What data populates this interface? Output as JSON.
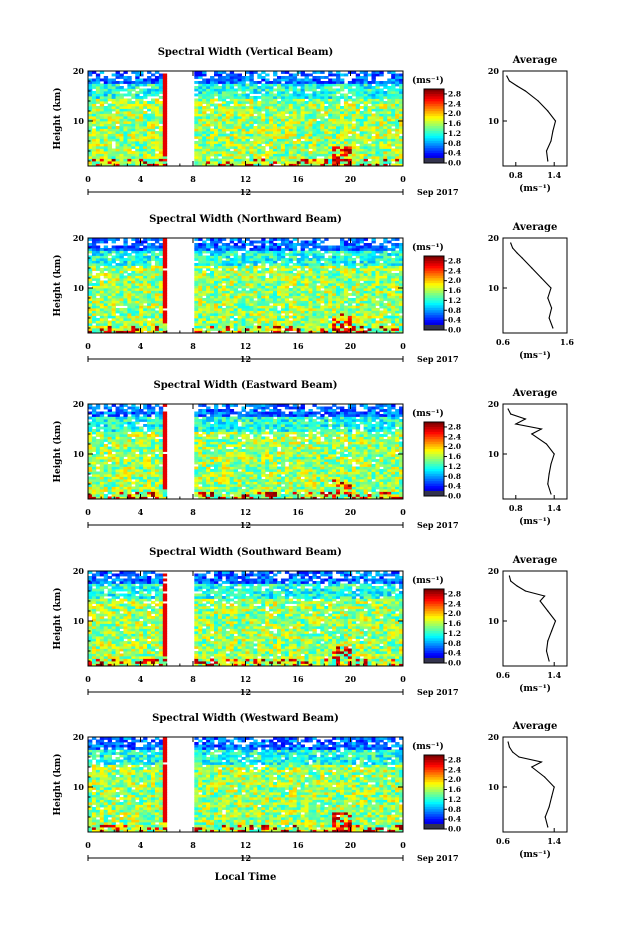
{
  "figure": {
    "xaxis_label": "Local Time",
    "date_label": "Sep 2017",
    "day_label": "12",
    "colorbar_unit": "(ms⁻¹)",
    "avg_title": "Average",
    "avg_unit": "(ms⁻¹)"
  },
  "chart_data": [
    {
      "type": "heatmap",
      "title": "Spectral Width (Vertical Beam)",
      "xlabel": "Local Time",
      "ylabel": "Height (km)",
      "xlim": [
        0,
        24
      ],
      "ylim": [
        1,
        20
      ],
      "xticks": [
        "0",
        "4",
        "8",
        "12",
        "16",
        "20",
        "0"
      ],
      "yticks": [
        "10",
        "20"
      ],
      "data_gap_hours": [
        6,
        8
      ],
      "colorbar": {
        "range": [
          0,
          3.0
        ],
        "ticks": [
          "2.8",
          "2.4",
          "2.0",
          "1.6",
          "1.2",
          "0.8",
          "0.4",
          "0.0"
        ]
      },
      "average_profile": {
        "xticks": [
          "0.8",
          "1.4"
        ],
        "xlim": [
          0.6,
          1.6
        ],
        "height_km": [
          2,
          4,
          6,
          8,
          10,
          12,
          14,
          16,
          17,
          18,
          19
        ],
        "width": [
          1.3,
          1.28,
          1.35,
          1.38,
          1.42,
          1.3,
          1.15,
          0.95,
          0.82,
          0.7,
          0.66
        ]
      }
    },
    {
      "type": "heatmap",
      "title": "Spectral Width (Northward Beam)",
      "xlabel": "Local Time",
      "ylabel": "Height (km)",
      "xlim": [
        0,
        24
      ],
      "ylim": [
        1,
        20
      ],
      "xticks": [
        "0",
        "4",
        "8",
        "12",
        "16",
        "20",
        "0"
      ],
      "yticks": [
        "10",
        "20"
      ],
      "data_gap_hours": [
        6,
        8
      ],
      "colorbar": {
        "range": [
          0,
          3.0
        ],
        "ticks": [
          "2.8",
          "2.4",
          "2.0",
          "1.6",
          "1.2",
          "0.8",
          "0.4",
          "0.0"
        ]
      },
      "average_profile": {
        "xticks": [
          "0.6",
          "1.6"
        ],
        "xlim": [
          0.6,
          1.6
        ],
        "height_km": [
          2,
          4,
          6,
          8,
          10,
          12,
          14,
          16,
          17,
          18,
          19
        ],
        "width": [
          1.38,
          1.32,
          1.36,
          1.3,
          1.35,
          1.2,
          1.05,
          0.9,
          0.82,
          0.75,
          0.72
        ]
      }
    },
    {
      "type": "heatmap",
      "title": "Spectral Width (Eastward Beam)",
      "xlabel": "Local Time",
      "ylabel": "Height (km)",
      "xlim": [
        0,
        24
      ],
      "ylim": [
        1,
        20
      ],
      "xticks": [
        "0",
        "4",
        "8",
        "12",
        "16",
        "20",
        "0"
      ],
      "yticks": [
        "10",
        "20"
      ],
      "data_gap_hours": [
        6,
        8
      ],
      "colorbar": {
        "range": [
          0,
          3.0
        ],
        "ticks": [
          "2.8",
          "2.4",
          "2.0",
          "1.6",
          "1.2",
          "0.8",
          "0.4",
          "0.0"
        ]
      },
      "average_profile": {
        "xticks": [
          "0.8",
          "1.4"
        ],
        "xlim": [
          0.6,
          1.6
        ],
        "height_km": [
          2,
          4,
          6,
          8,
          10,
          12,
          14,
          15,
          16,
          17,
          18,
          19
        ],
        "width": [
          1.35,
          1.3,
          1.32,
          1.35,
          1.4,
          1.28,
          1.05,
          1.2,
          0.8,
          0.95,
          0.72,
          0.68
        ]
      }
    },
    {
      "type": "heatmap",
      "title": "Spectral Width (Southward Beam)",
      "xlabel": "Local Time",
      "ylabel": "Height (km)",
      "xlim": [
        0,
        24
      ],
      "ylim": [
        1,
        20
      ],
      "xticks": [
        "0",
        "4",
        "8",
        "12",
        "16",
        "20",
        "0"
      ],
      "yticks": [
        "10",
        "20"
      ],
      "data_gap_hours": [
        6,
        8
      ],
      "colorbar": {
        "range": [
          0,
          3.0
        ],
        "ticks": [
          "2.8",
          "2.4",
          "2.0",
          "1.6",
          "1.2",
          "0.8",
          "0.4",
          "0.0"
        ]
      },
      "average_profile": {
        "xticks": [
          "0.6",
          "1.4"
        ],
        "xlim": [
          0.6,
          1.6
        ],
        "height_km": [
          2,
          4,
          6,
          8,
          10,
          12,
          14,
          15,
          16,
          17,
          18,
          19
        ],
        "width": [
          1.32,
          1.28,
          1.3,
          1.36,
          1.42,
          1.3,
          1.18,
          1.25,
          0.95,
          0.82,
          0.72,
          0.7
        ]
      }
    },
    {
      "type": "heatmap",
      "title": "Spectral Width (Westward Beam)",
      "xlabel": "Local Time",
      "ylabel": "Height (km)",
      "xlim": [
        0,
        24
      ],
      "ylim": [
        1,
        20
      ],
      "xticks": [
        "0",
        "4",
        "8",
        "12",
        "16",
        "20",
        "0"
      ],
      "yticks": [
        "10",
        "20"
      ],
      "data_gap_hours": [
        6,
        8
      ],
      "colorbar": {
        "range": [
          0,
          3.0
        ],
        "ticks": [
          "2.8",
          "2.4",
          "2.0",
          "1.6",
          "1.2",
          "0.8",
          "0.4",
          "0.0"
        ]
      },
      "average_profile": {
        "xticks": [
          "0.6",
          "1.4"
        ],
        "xlim": [
          0.6,
          1.6
        ],
        "height_km": [
          2,
          4,
          6,
          8,
          10,
          12,
          14,
          15,
          16,
          17,
          18,
          19
        ],
        "width": [
          1.3,
          1.26,
          1.32,
          1.36,
          1.4,
          1.25,
          1.05,
          1.2,
          0.85,
          0.75,
          0.7,
          0.68
        ]
      }
    }
  ]
}
